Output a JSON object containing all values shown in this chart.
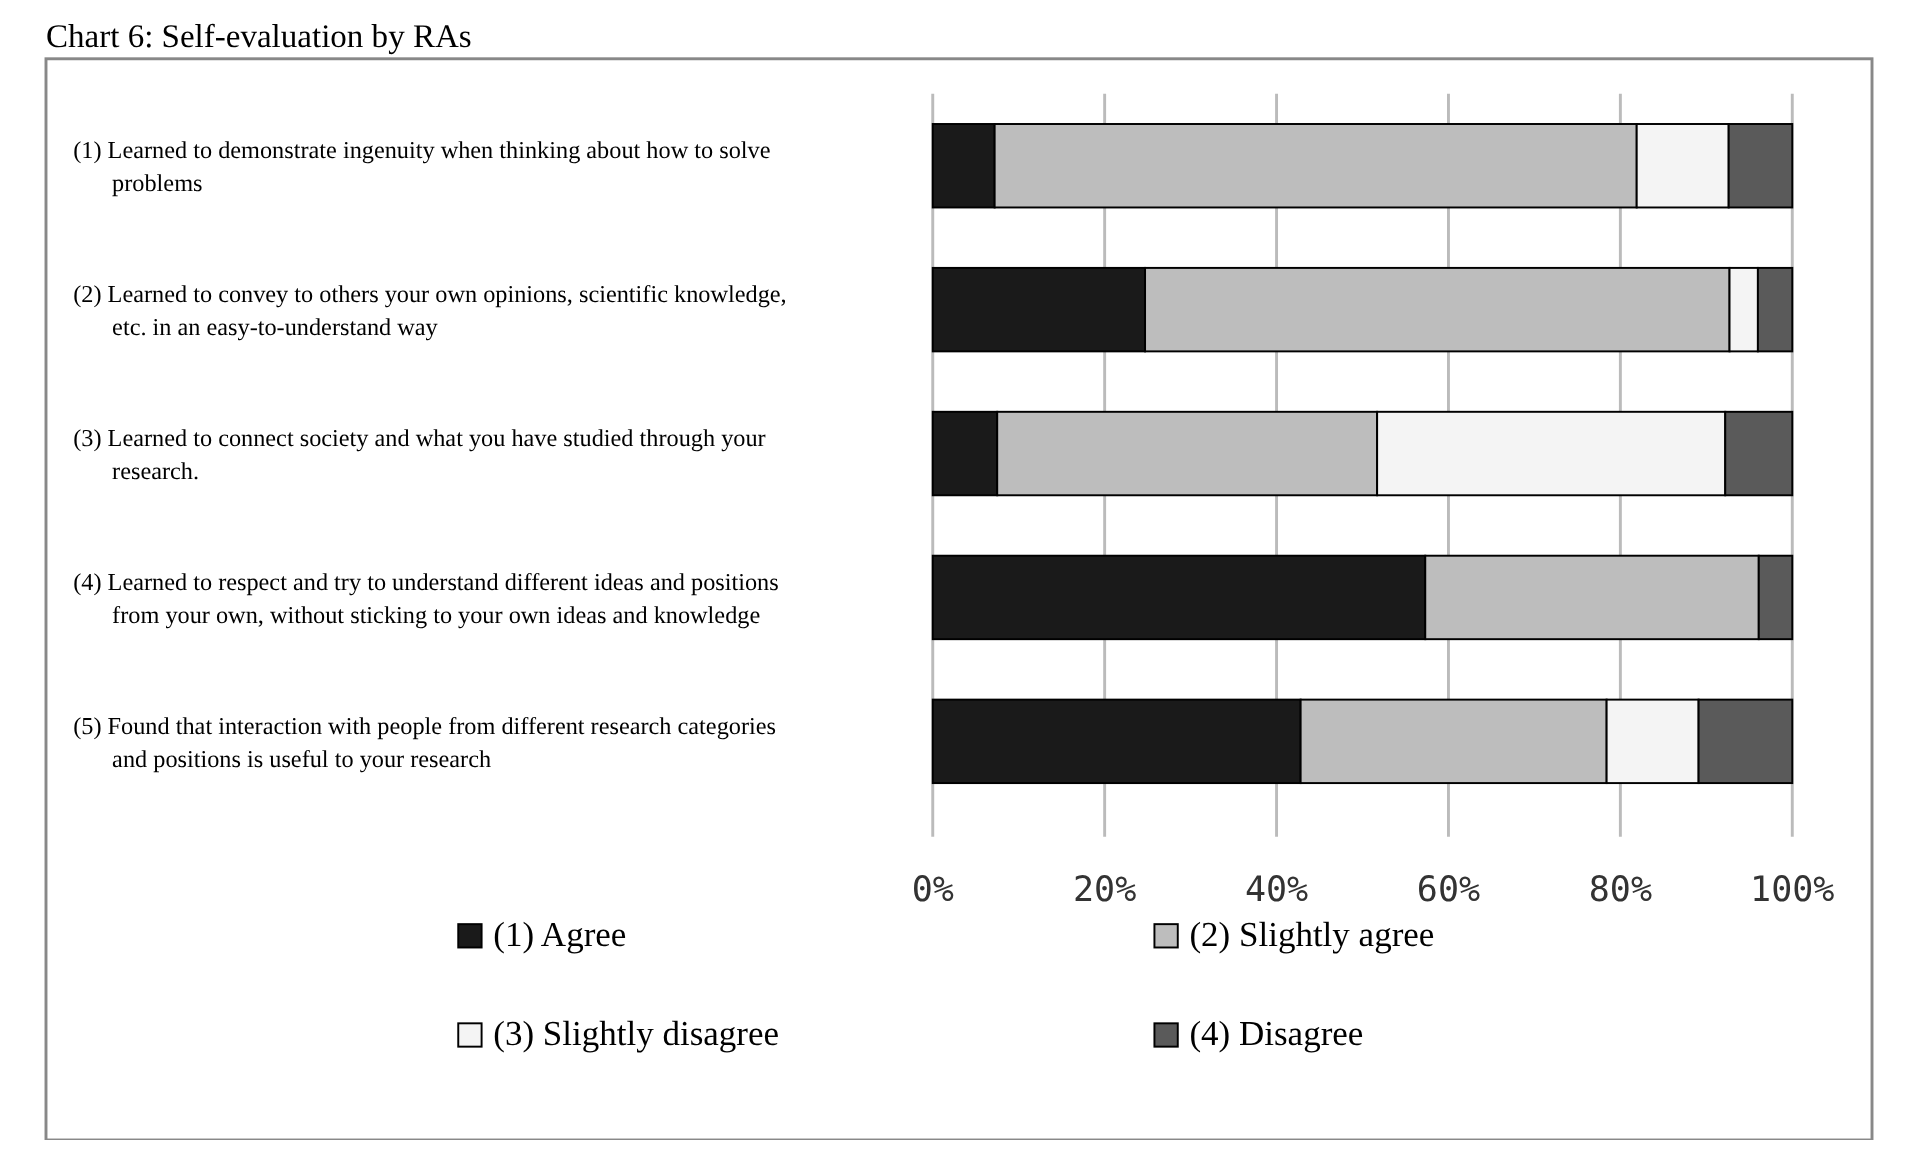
{
  "chart_data": {
    "type": "bar",
    "orientation": "horizontal",
    "stacked": true,
    "title": "Chart 6: Self-evaluation by RAs",
    "categories": [
      "(1) Learned to demonstrate ingenuity when thinking about how to solve problems",
      "(2) Learned to convey to others your own opinions, scientific knowledge, etc. in an easy-to-understand way",
      "(3) Learned to connect society and what you have studied through your research.",
      "(4) Learned to respect and try to understand different ideas and positions from your own, without sticking to your own ideas and knowledge",
      "(5) Found that interaction with people from different research categories and positions is useful to your research"
    ],
    "series": [
      {
        "name": "(1) Agree",
        "color": "#1a1a1a",
        "values": [
          7.2,
          24.7,
          7.5,
          57.3,
          42.8
        ]
      },
      {
        "name": "(2) Slightly agree",
        "color": "#bdbdbd",
        "values": [
          74.7,
          68,
          44.2,
          38.8,
          35.6
        ]
      },
      {
        "name": "(3) Slightly disagree",
        "color": "#f4f4f4",
        "values": [
          10.7,
          3.3,
          40.5,
          0,
          10.7
        ]
      },
      {
        "name": "(4) Disagree",
        "color": "#5a5a5a",
        "values": [
          7.4,
          4,
          7.8,
          3.9,
          10.9
        ]
      }
    ],
    "xlim": [
      0,
      100
    ],
    "xticks": [
      {
        "value": 0,
        "label": "0%"
      },
      {
        "value": 20,
        "label": "20%"
      },
      {
        "value": 40,
        "label": "40%"
      },
      {
        "value": 60,
        "label": "60%"
      },
      {
        "value": 80,
        "label": "80%"
      },
      {
        "value": 100,
        "label": "100%"
      }
    ],
    "grid": "x",
    "legend": "bottom"
  }
}
